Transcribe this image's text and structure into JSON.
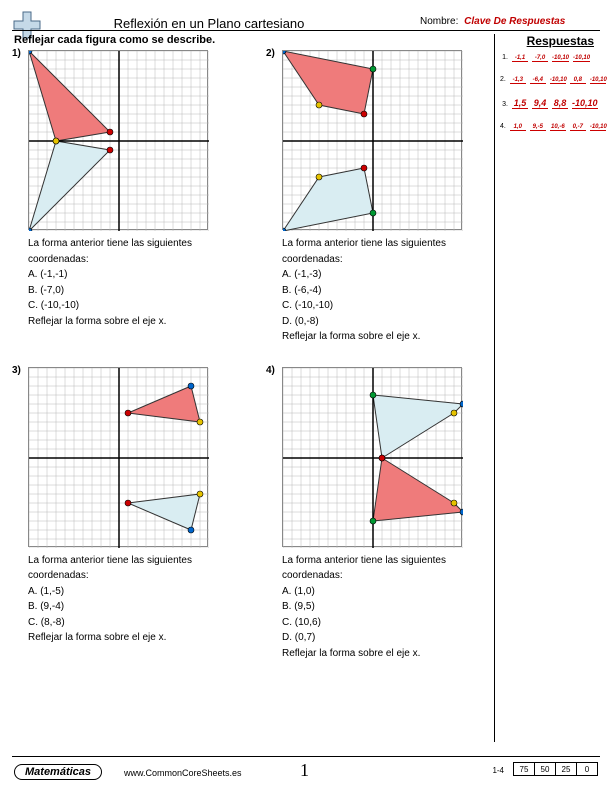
{
  "header": {
    "title": "Reflexión en un Plano cartesiano",
    "name_label": "Nombre:",
    "name_value": "Clave De Respuestas"
  },
  "instruction": "Reflejar cada figura como se describe.",
  "answers_header": "Respuestas",
  "answers": [
    {
      "num": "1.",
      "cells": [
        "-1,1",
        "-7,0",
        "-10,10",
        "-10,10"
      ],
      "big": false
    },
    {
      "num": "2.",
      "cells": [
        "-1,3",
        "-6,4",
        "-10,10",
        "0,8",
        "-10,10"
      ],
      "big": false
    },
    {
      "num": "3.",
      "cells": [
        "1,5",
        "9,4",
        "8,8",
        "-10,10"
      ],
      "big": true
    },
    {
      "num": "4.",
      "cells": [
        "1,0",
        "9,-5",
        "10,-6",
        "0,-7",
        "-10,10"
      ],
      "big": false
    }
  ],
  "problems": [
    {
      "num": "1)",
      "grid": {
        "range": 10
      },
      "shapes": [
        {
          "poly": [
            [
              -1,
              -1
            ],
            [
              -7,
              0
            ],
            [
              -10,
              -10
            ]
          ],
          "fill": "#d9edf2",
          "reflected": true
        },
        {
          "poly": [
            [
              -1,
              1
            ],
            [
              -7,
              0
            ],
            [
              -10,
              10
            ]
          ],
          "fill": "#ef7b7b",
          "reflected": false
        }
      ],
      "intro": "La forma anterior tiene las siguientes coordenadas:",
      "coords": [
        "A. (-1,-1)",
        "B. (-7,0)",
        "C. (-10,-10)"
      ],
      "action": "Reflejar la forma sobre el eje x."
    },
    {
      "num": "2)",
      "grid": {
        "range": 10
      },
      "shapes": [
        {
          "poly": [
            [
              -1,
              -3
            ],
            [
              -6,
              -4
            ],
            [
              -10,
              -10
            ],
            [
              0,
              -8
            ]
          ],
          "fill": "#d9edf2",
          "reflected": true
        },
        {
          "poly": [
            [
              -1,
              3
            ],
            [
              -6,
              4
            ],
            [
              -10,
              10
            ],
            [
              0,
              8
            ]
          ],
          "fill": "#ef7b7b",
          "reflected": false
        }
      ],
      "intro": "La forma anterior tiene las siguientes coordenadas:",
      "coords": [
        "A. (-1,-3)",
        "B. (-6,-4)",
        "C. (-10,-10)",
        "D. (0,-8)"
      ],
      "action": "Reflejar la forma sobre el eje x."
    },
    {
      "num": "3)",
      "grid": {
        "range": 10
      },
      "shapes": [
        {
          "poly": [
            [
              1,
              -5
            ],
            [
              9,
              -4
            ],
            [
              8,
              -8
            ]
          ],
          "fill": "#d9edf2",
          "reflected": true
        },
        {
          "poly": [
            [
              1,
              5
            ],
            [
              9,
              4
            ],
            [
              8,
              8
            ]
          ],
          "fill": "#ef7b7b",
          "reflected": false
        }
      ],
      "intro": "La forma anterior tiene las siguientes coordenadas:",
      "coords": [
        "A. (1,-5)",
        "B. (9,-4)",
        "C. (8,-8)"
      ],
      "action": "Reflejar la forma sobre el eje x."
    },
    {
      "num": "4)",
      "grid": {
        "range": 10
      },
      "shapes": [
        {
          "poly": [
            [
              1,
              0
            ],
            [
              9,
              5
            ],
            [
              10,
              6
            ],
            [
              0,
              7
            ]
          ],
          "fill": "#d9edf2",
          "reflected": true
        },
        {
          "poly": [
            [
              1,
              0
            ],
            [
              9,
              -5
            ],
            [
              10,
              -6
            ],
            [
              0,
              -7
            ]
          ],
          "fill": "#ef7b7b",
          "reflected": false
        }
      ],
      "intro": "La forma anterior tiene las siguientes coordenadas:",
      "coords": [
        "A. (1,0)",
        "B. (9,5)",
        "C. (10,6)",
        "D. (0,7)"
      ],
      "action": "Reflejar la forma sobre el eje x."
    }
  ],
  "footer": {
    "subject": "Matemáticas",
    "url": "www.CommonCoreSheets.es",
    "page": "1",
    "range": "1-4",
    "scores": [
      "75",
      "50",
      "25",
      "0"
    ]
  },
  "colors": {
    "grid_minor": "#b8b8b8",
    "grid_major": "#000000",
    "shape_orig": "#ef7b7b",
    "shape_refl": "#d9edf2",
    "vertex_colors": [
      "#cc0000",
      "#e6c300",
      "#0066cc",
      "#009933"
    ]
  }
}
